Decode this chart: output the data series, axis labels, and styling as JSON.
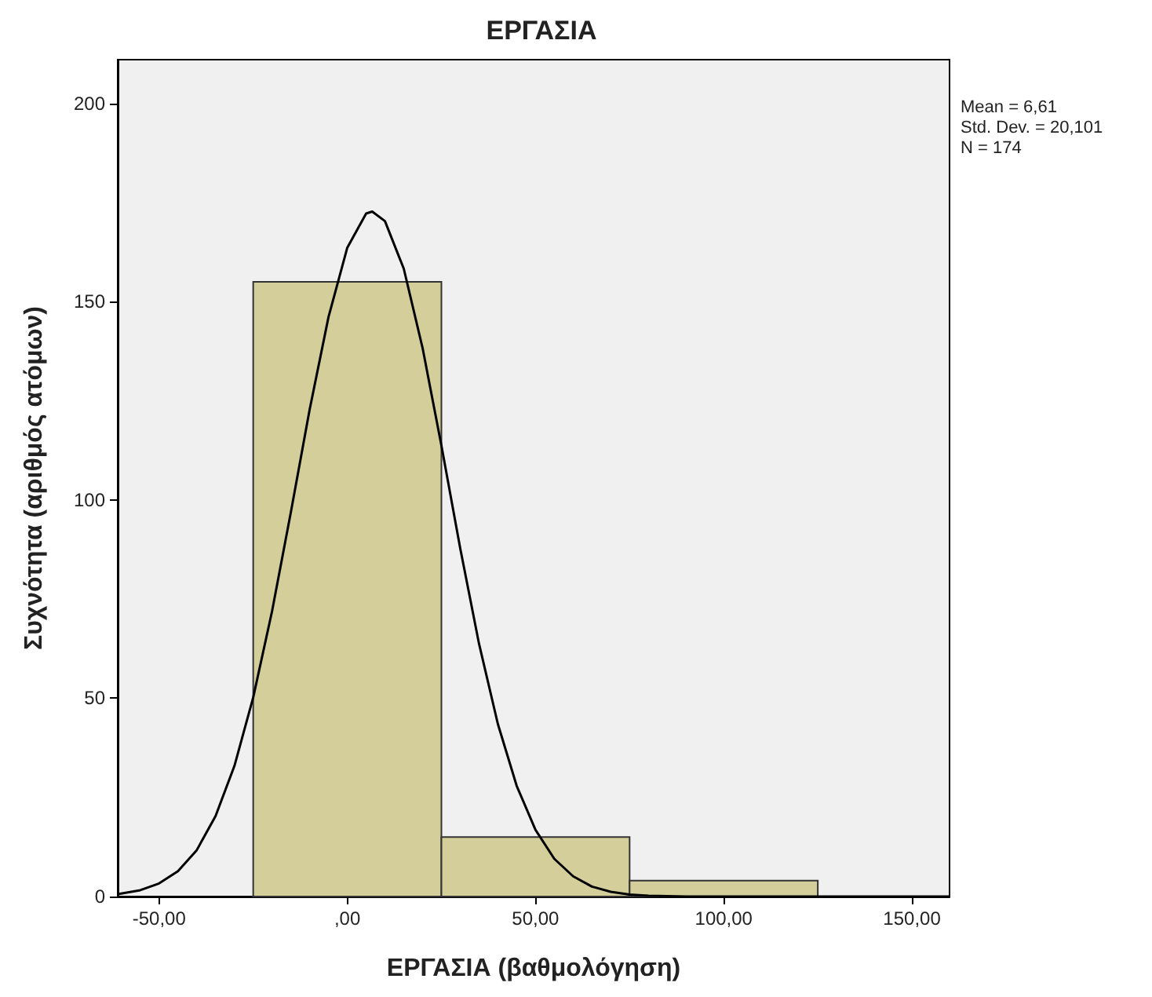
{
  "chart_data": {
    "type": "histogram",
    "title": "ΕΡΓΑΣΙΑ",
    "xlabel": "ΕΡΓΑΣΙΑ (βαθμολόγηση)",
    "ylabel": "Συχνότητα (αριθμός ατόμων)",
    "annotations": [
      "Mean = 6,61",
      "Std. Dev. = 20,101",
      "N = 174"
    ],
    "series": [
      {
        "color": "#d3ce9a",
        "bins": [
          -25,
          25,
          75,
          125
        ],
        "values": [
          155,
          15,
          4
        ]
      },
      {
        "type": "line",
        "color": "#000000",
        "marker": "none",
        "x": [
          -61,
          -55,
          -50,
          -45,
          -40,
          -35,
          -30,
          -25,
          -20,
          -15,
          -10,
          -5,
          0,
          5,
          6.61,
          10,
          15,
          20,
          25,
          30,
          35,
          40,
          45,
          50,
          55,
          60,
          65,
          70,
          75,
          80,
          85,
          90,
          100,
          120,
          140,
          160
        ],
        "values": [
          0.6,
          1.6,
          3.3,
          6.4,
          11.7,
          20.3,
          32.9,
          50.2,
          71.9,
          96.9,
          122.8,
          146.1,
          163.6,
          172.2,
          172.7,
          170.3,
          158.3,
          138.3,
          113.7,
          87.8,
          63.7,
          43.5,
          27.9,
          16.8,
          9.5,
          5.1,
          2.5,
          1.2,
          0.5,
          0.2,
          0.1,
          0,
          0,
          0,
          0,
          0
        ]
      }
    ],
    "xlim": [
      -61,
      160
    ],
    "xticks": [
      {
        "value": -50,
        "label": "-50,00"
      },
      {
        "value": 0,
        "label": ",00"
      },
      {
        "value": 50,
        "label": "50,00"
      },
      {
        "value": 100,
        "label": "100,00"
      },
      {
        "value": 150,
        "label": "150,00"
      }
    ],
    "ylim": [
      0,
      211
    ],
    "yticks": [
      0,
      50,
      100,
      150,
      200
    ]
  }
}
